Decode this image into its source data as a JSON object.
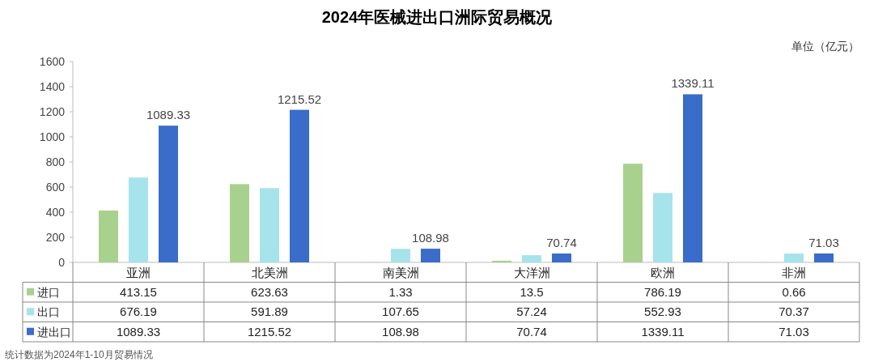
{
  "chart_data": {
    "type": "bar",
    "title": "2024年医械进出口洲际贸易概况",
    "ylabel": "单位（亿元）",
    "categories": [
      "亚洲",
      "北美洲",
      "南美洲",
      "大洋洲",
      "欧洲",
      "非洲"
    ],
    "series": [
      {
        "name": "进口",
        "color": "#a9d18e",
        "values": [
          413.15,
          623.63,
          1.33,
          13.5,
          786.19,
          0.66
        ]
      },
      {
        "name": "出口",
        "color": "#a6e3ea",
        "values": [
          676.19,
          591.89,
          107.65,
          57.24,
          552.93,
          70.37
        ]
      },
      {
        "name": "进出口",
        "color": "#3a6cc9",
        "values": [
          1089.33,
          1215.52,
          108.98,
          70.74,
          1339.11,
          71.03
        ]
      }
    ],
    "ylim": [
      0,
      1600
    ],
    "yticks": [
      0,
      200,
      400,
      600,
      800,
      1000,
      1200,
      1400,
      1600
    ],
    "data_labels": true,
    "legend": "bottom",
    "grid": false,
    "annotations": [
      "统计数据为2024年1-10月贸易情况",
      "1089.33",
      "1215.52",
      "108.98",
      "70.74",
      "1339.11",
      "71.03"
    ]
  }
}
